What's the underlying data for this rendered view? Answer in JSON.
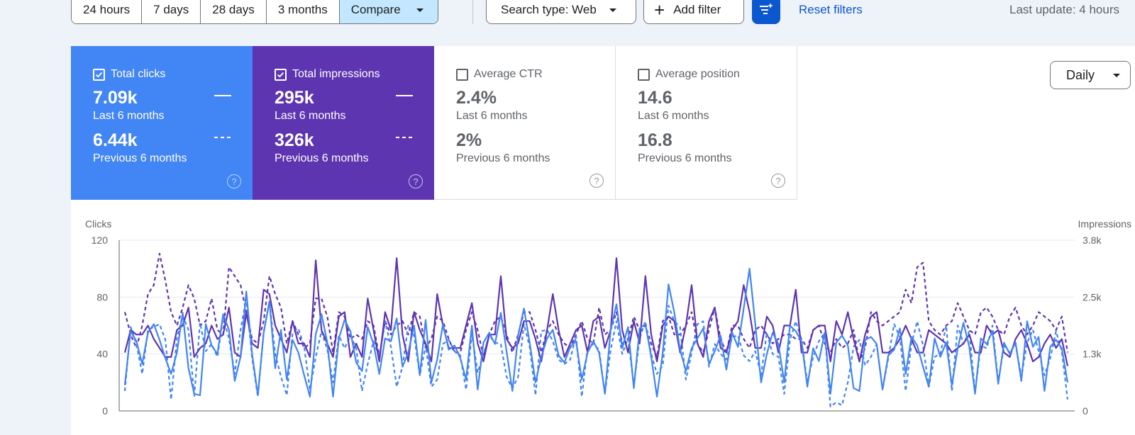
{
  "toolbar": {
    "date_ranges": [
      "24 hours",
      "7 days",
      "28 days",
      "3 months"
    ],
    "compare_label": "Compare",
    "search_type_label": "Search type: Web",
    "add_filter_label": "Add filter",
    "reset_filters_label": "Reset filters",
    "last_update": "Last update: 4 hours",
    "filter_icon": "filter-sparkle-icon"
  },
  "cards": [
    {
      "label": "Total clicks",
      "checked": true,
      "value": "7.09k",
      "period": "Last 6 months",
      "prev_value": "6.44k",
      "prev_period": "Previous 6 months",
      "color": "#4285f4"
    },
    {
      "label": "Total impressions",
      "checked": true,
      "value": "295k",
      "period": "Last 6 months",
      "prev_value": "326k",
      "prev_period": "Previous 6 months",
      "color": "#5e35b1"
    },
    {
      "label": "Average CTR",
      "checked": false,
      "value": "2.4%",
      "period": "Last 6 months",
      "prev_value": "2%",
      "prev_period": "Previous 6 months"
    },
    {
      "label": "Average position",
      "checked": false,
      "value": "14.6",
      "period": "Last 6 months",
      "prev_value": "16.8",
      "prev_period": "Previous 6 months"
    }
  ],
  "granularity": "Daily",
  "colors": {
    "clicks": "#4285f4",
    "impressions": "#5e35b1",
    "accent": "#0b57d0"
  },
  "chart_data": {
    "type": "line",
    "ylabel_left": "Clicks",
    "ylabel_right": "Impressions",
    "left_ticks": [
      "0",
      "40",
      "80",
      "120"
    ],
    "right_ticks": [
      "0",
      "1.3k",
      "2.5k",
      "3.8k"
    ],
    "ylim_left": [
      0,
      120
    ],
    "ylim_right": [
      0,
      3800
    ],
    "grid": true,
    "series": [
      {
        "axis": "left",
        "style": "solid",
        "color": "#4285f4",
        "values": [
          18,
          56,
          49,
          33,
          55,
          61,
          50,
          37,
          26,
          41,
          69,
          30,
          12,
          11,
          61,
          46,
          40,
          68,
          57,
          21,
          38,
          84,
          40,
          11,
          55,
          77,
          30,
          57,
          22,
          50,
          41,
          25,
          10,
          54,
          68,
          48,
          10,
          51,
          64,
          56,
          34,
          28,
          59,
          47,
          26,
          51,
          49,
          65,
          31,
          41,
          60,
          25,
          64,
          20,
          36,
          61,
          43,
          46,
          37,
          22,
          60,
          15,
          48,
          55,
          47,
          69,
          42,
          14,
          53,
          72,
          48,
          20,
          38,
          51,
          57,
          39,
          34,
          45,
          49,
          22,
          41,
          49,
          41,
          12,
          57,
          75,
          44,
          59,
          16,
          58,
          61,
          38,
          10,
          41,
          89,
          69,
          43,
          28,
          44,
          51,
          58,
          33,
          42,
          53,
          29,
          55,
          45,
          72,
          100,
          61,
          20,
          40,
          55,
          47,
          20,
          60,
          56,
          49,
          17,
          44,
          35,
          55,
          12,
          48,
          53,
          46,
          16,
          14,
          50,
          52,
          47,
          15,
          39,
          43,
          58,
          26,
          52,
          46,
          31,
          17,
          51,
          38,
          48,
          18,
          44,
          62,
          45,
          12,
          51,
          47,
          56,
          19,
          48,
          40,
          48,
          21,
          63,
          45,
          52,
          14,
          45,
          50,
          44,
          20
        ]
      },
      {
        "axis": "left",
        "style": "dashed",
        "color": "#4285f4",
        "values": [
          14,
          59,
          47,
          26,
          57,
          59,
          61,
          50,
          8,
          51,
          67,
          57,
          10,
          62,
          42,
          47,
          38,
          66,
          51,
          26,
          57,
          79,
          37,
          10,
          55,
          77,
          40,
          24,
          11,
          55,
          58,
          45,
          15,
          38,
          56,
          43,
          20,
          53,
          44,
          53,
          44,
          14,
          33,
          49,
          38,
          63,
          45,
          17,
          31,
          60,
          53,
          25,
          46,
          17,
          22,
          47,
          50,
          42,
          39,
          15,
          54,
          27,
          40,
          53,
          48,
          47,
          24,
          16,
          24,
          61,
          45,
          11,
          56,
          57,
          49,
          36,
          33,
          36,
          53,
          10,
          44,
          47,
          43,
          12,
          43,
          63,
          40,
          51,
          18,
          51,
          63,
          40,
          26,
          32,
          74,
          63,
          59,
          22,
          41,
          61,
          63,
          31,
          47,
          40,
          36,
          52,
          53,
          39,
          35,
          42,
          25,
          55,
          40,
          38,
          12,
          50,
          63,
          50,
          20,
          38,
          49,
          55,
          3,
          6,
          4,
          20,
          45,
          50,
          32,
          38,
          47,
          15,
          37,
          61,
          52,
          14,
          47,
          63,
          46,
          17,
          38,
          40,
          60,
          14,
          60,
          47,
          56,
          13,
          46,
          44,
          60,
          20,
          46,
          41,
          47,
          24,
          48,
          57,
          42,
          25,
          37,
          56,
          42,
          8
        ]
      },
      {
        "axis": "right",
        "style": "solid",
        "color": "#5e35b1",
        "values": [
          1300,
          1800,
          1700,
          1700,
          1900,
          1600,
          1400,
          1200,
          1200,
          1800,
          1900,
          2300,
          1200,
          1400,
          1500,
          1900,
          1600,
          1700,
          2300,
          1300,
          1200,
          2200,
          1500,
          1400,
          2700,
          2600,
          1900,
          1600,
          1300,
          2000,
          1500,
          1500,
          1200,
          3350,
          1800,
          1500,
          1200,
          2100,
          2200,
          1200,
          1500,
          1200,
          2500,
          1800,
          1100,
          2200,
          1800,
          3400,
          1700,
          1100,
          2200,
          1800,
          1500,
          1100,
          2600,
          1900,
          1400,
          1400,
          1400,
          1900,
          2400,
          1500,
          1100,
          1700,
          1700,
          3000,
          1600,
          1400,
          1500,
          2000,
          2000,
          1600,
          1100,
          1800,
          2600,
          1800,
          1200,
          1500,
          1800,
          1900,
          1300,
          2000,
          2100,
          1400,
          1800,
          3400,
          1800,
          1300,
          2000,
          1500,
          3000,
          1700,
          1100,
          1900,
          2100,
          2000,
          1300,
          1900,
          2800,
          1500,
          1200,
          2000,
          2300,
          1400,
          1300,
          1800,
          2000,
          2800,
          2200,
          1400,
          1400,
          2100,
          1900,
          1300,
          1900,
          1900,
          2700,
          1300,
          1300,
          1800,
          1900,
          1900,
          1100,
          2000,
          1700,
          2200,
          1600,
          1100,
          1700,
          2100,
          2200,
          1300,
          1300,
          1400,
          1600,
          1900,
          1600,
          1300,
          1300,
          1800,
          1700,
          1600,
          1500,
          1300,
          1400,
          1500,
          1700,
          1300,
          1300,
          1900,
          1700,
          1800,
          1300,
          1200,
          1600,
          1800,
          1500,
          1100,
          1200,
          1500,
          1700,
          1400,
          1600,
          1000
        ]
      },
      {
        "axis": "right",
        "style": "dashed",
        "color": "#5e35b1",
        "values": [
          2200,
          1700,
          1400,
          1900,
          2600,
          2800,
          3500,
          2900,
          2200,
          1900,
          2300,
          2800,
          2500,
          1900,
          2000,
          2500,
          1800,
          1700,
          3200,
          3000,
          2800,
          2200,
          1600,
          1500,
          2000,
          3000,
          2600,
          2300,
          1500,
          2000,
          1700,
          1400,
          1500,
          2500,
          2500,
          2100,
          1300,
          2200,
          2100,
          1600,
          1700,
          1600,
          2000,
          1900,
          1200,
          2000,
          1700,
          1900,
          2000,
          1700,
          2200,
          2100,
          1400,
          1600,
          2100,
          2000,
          1600,
          1300,
          1300,
          1800,
          2200,
          1800,
          1200,
          1700,
          2000,
          2100,
          1700,
          1300,
          1700,
          2200,
          2200,
          1800,
          1300,
          1800,
          2000,
          1700,
          1500,
          1400,
          1700,
          2000,
          1600,
          1500,
          2300,
          1700,
          1800,
          2200,
          1500,
          1600,
          2100,
          1800,
          1900,
          1500,
          1200,
          2000,
          2100,
          1700,
          1700,
          1900,
          2200,
          1500,
          1300,
          1800,
          2300,
          1600,
          1300,
          1900,
          1900,
          1600,
          1400,
          1800,
          1900,
          1700,
          1500,
          1600,
          1700,
          1700,
          1600,
          1600,
          1400,
          1800,
          1900,
          1500,
          1300,
          1600,
          1400,
          1500,
          1800,
          1100,
          1400,
          2200,
          2000,
          1900,
          2000,
          2100,
          2200,
          2700,
          2400,
          3200,
          3300,
          2000,
          1800,
          1700,
          1900,
          2000,
          2400,
          2100,
          1800,
          1700,
          2200,
          2300,
          2100,
          1800,
          1700,
          2100,
          2300,
          1900,
          1700,
          1900,
          2200,
          2100,
          2000,
          1800,
          2100,
          1300
        ]
      }
    ]
  }
}
